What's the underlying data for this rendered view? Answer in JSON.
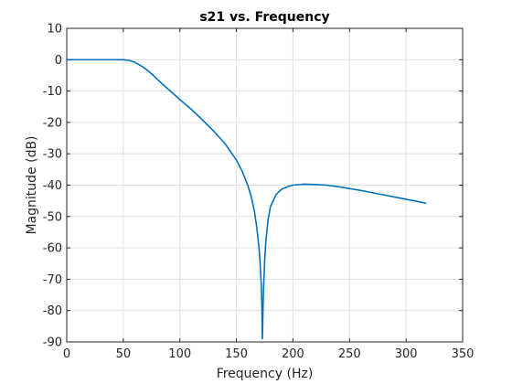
{
  "chart_data": {
    "type": "line",
    "title": "s21 vs. Frequency",
    "xlabel": "Frequency (Hz)",
    "ylabel": "Magnitude (dB)",
    "xlim": [
      0,
      350
    ],
    "ylim": [
      -90,
      10
    ],
    "xticks": [
      0,
      50,
      100,
      150,
      200,
      250,
      300,
      350
    ],
    "yticks": [
      10,
      0,
      -10,
      -20,
      -30,
      -40,
      -50,
      -60,
      -70,
      -80,
      -90
    ],
    "grid": true,
    "series": [
      {
        "color": "#0072bd",
        "x": [
          0,
          10,
          20,
          30,
          40,
          50,
          55,
          60,
          65,
          70,
          75,
          80,
          85,
          90,
          95,
          100,
          110,
          120,
          130,
          140,
          150,
          155,
          160,
          163,
          166,
          168,
          170,
          171,
          172,
          172.5,
          173,
          173.5,
          174,
          175,
          176,
          178,
          180,
          185,
          190,
          195,
          200,
          210,
          220,
          230,
          240,
          250,
          260,
          270,
          280,
          290,
          300,
          310,
          318
        ],
        "y": [
          0,
          0,
          0,
          0,
          0,
          0,
          -0.2,
          -0.8,
          -1.8,
          -3,
          -4.5,
          -6.2,
          -7.9,
          -9.5,
          -11.1,
          -12.7,
          -15.8,
          -19.2,
          -22.8,
          -26.8,
          -32,
          -35.5,
          -40,
          -43.5,
          -48.5,
          -53.5,
          -60,
          -65,
          -72,
          -78,
          -89,
          -80,
          -73,
          -64,
          -58,
          -51,
          -47,
          -43,
          -41.3,
          -40.5,
          -40,
          -39.7,
          -39.8,
          -40,
          -40.5,
          -41.1,
          -41.7,
          -42.4,
          -43.1,
          -43.8,
          -44.5,
          -45.2,
          -45.8
        ]
      }
    ]
  }
}
